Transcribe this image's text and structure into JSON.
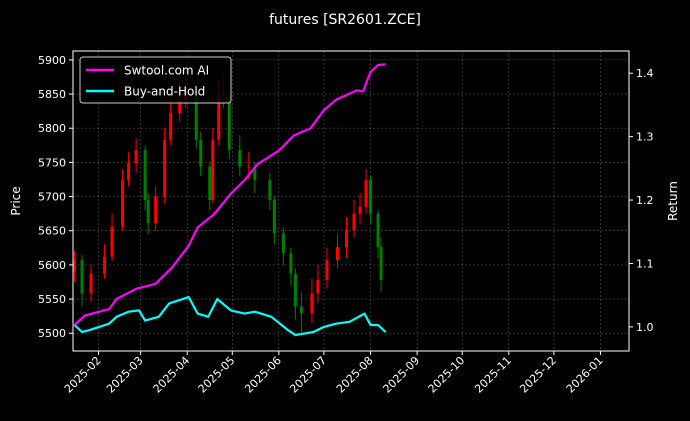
{
  "chart_data": {
    "type": "line",
    "title": "futures [SR2601.ZCE]",
    "ylabel_left": "Price",
    "ylabel_right": "Return",
    "xlim": [
      "2025-01-15",
      "2026-01-20"
    ],
    "ylim_left": [
      5474,
      5913
    ],
    "ylim_right": [
      0.962,
      1.435
    ],
    "x_ticks": [
      "2025-02",
      "2025-03",
      "2025-04",
      "2025-05",
      "2025-06",
      "2025-07",
      "2025-08",
      "2025-09",
      "2025-10",
      "2025-11",
      "2025-12",
      "2026-01"
    ],
    "y_ticks_left": [
      5500,
      5550,
      5600,
      5650,
      5700,
      5750,
      5800,
      5850,
      5900
    ],
    "y_ticks_right": [
      1.0,
      1.1,
      1.2,
      1.3,
      1.4
    ],
    "grid": true,
    "legend_placement": "top-left",
    "colors": {
      "background": "#000000",
      "up": "#ff0000",
      "down": "#008000",
      "strategy": "#ff00ff",
      "benchmark": "#00ffff",
      "grid": "#555555"
    },
    "candles": [
      [
        "2025-01-16",
        5590,
        5620,
        5575,
        5607
      ],
      [
        "2025-01-21",
        5607,
        5615,
        5540,
        5558
      ],
      [
        "2025-01-27",
        5558,
        5600,
        5545,
        5587
      ],
      [
        "2025-02-05",
        5587,
        5630,
        5580,
        5612
      ],
      [
        "2025-02-10",
        5612,
        5675,
        5605,
        5656
      ],
      [
        "2025-02-17",
        5656,
        5740,
        5650,
        5724
      ],
      [
        "2025-02-21",
        5724,
        5765,
        5715,
        5749
      ],
      [
        "2025-02-26",
        5749,
        5785,
        5735,
        5768
      ],
      [
        "2025-03-04",
        5768,
        5775,
        5680,
        5695
      ],
      [
        "2025-03-06",
        5695,
        5705,
        5645,
        5661
      ],
      [
        "2025-03-11",
        5661,
        5715,
        5650,
        5700
      ],
      [
        "2025-03-17",
        5700,
        5800,
        5690,
        5783
      ],
      [
        "2025-03-21",
        5783,
        5840,
        5775,
        5822
      ],
      [
        "2025-03-27",
        5822,
        5870,
        5810,
        5841
      ],
      [
        "2025-03-31",
        5841,
        5895,
        5830,
        5856
      ],
      [
        "2025-04-07",
        5856,
        5860,
        5770,
        5783
      ],
      [
        "2025-04-10",
        5783,
        5795,
        5730,
        5744
      ],
      [
        "2025-04-16",
        5744,
        5750,
        5680,
        5695
      ],
      [
        "2025-04-18",
        5695,
        5800,
        5690,
        5783
      ],
      [
        "2025-04-22",
        5783,
        5870,
        5775,
        5851
      ],
      [
        "2025-04-25",
        5851,
        5880,
        5830,
        5846
      ],
      [
        "2025-04-29",
        5846,
        5850,
        5755,
        5768
      ],
      [
        "2025-05-06",
        5768,
        5790,
        5730,
        5744
      ],
      [
        "2025-05-12",
        5744,
        5765,
        5725,
        5744
      ],
      [
        "2025-05-16",
        5744,
        5750,
        5705,
        5724
      ],
      [
        "2025-05-26",
        5724,
        5735,
        5680,
        5695
      ],
      [
        "2025-05-29",
        5695,
        5700,
        5630,
        5646
      ],
      [
        "2025-06-04",
        5646,
        5655,
        5600,
        5617
      ],
      [
        "2025-06-09",
        5617,
        5625,
        5570,
        5587
      ],
      [
        "2025-06-12",
        5587,
        5595,
        5520,
        5539
      ],
      [
        "2025-06-16",
        5539,
        5560,
        5500,
        5529
      ],
      [
        "2025-06-23",
        5529,
        5580,
        5515,
        5558
      ],
      [
        "2025-06-27",
        5558,
        5600,
        5545,
        5578
      ],
      [
        "2025-07-03",
        5578,
        5625,
        5565,
        5607
      ],
      [
        "2025-07-10",
        5607,
        5645,
        5595,
        5626
      ],
      [
        "2025-07-16",
        5626,
        5670,
        5610,
        5651
      ],
      [
        "2025-07-21",
        5651,
        5695,
        5640,
        5675
      ],
      [
        "2025-07-25",
        5675,
        5705,
        5660,
        5685
      ],
      [
        "2025-07-29",
        5685,
        5740,
        5675,
        5724
      ],
      [
        "2025-08-01",
        5724,
        5730,
        5660,
        5675
      ],
      [
        "2025-08-06",
        5675,
        5680,
        5610,
        5626
      ],
      [
        "2025-08-08",
        5626,
        5640,
        5560,
        5578
      ]
    ],
    "series": [
      {
        "name": "Swtool.com AI",
        "axis": "right",
        "points": [
          [
            "2025-01-16",
            1.003
          ],
          [
            "2025-01-23",
            1.018
          ],
          [
            "2025-02-08",
            1.028
          ],
          [
            "2025-02-13",
            1.044
          ],
          [
            "2025-02-26",
            1.06
          ],
          [
            "2025-03-11",
            1.068
          ],
          [
            "2025-03-22",
            1.094
          ],
          [
            "2025-04-02",
            1.128
          ],
          [
            "2025-04-08",
            1.157
          ],
          [
            "2025-04-19",
            1.178
          ],
          [
            "2025-04-30",
            1.21
          ],
          [
            "2025-05-09",
            1.231
          ],
          [
            "2025-05-18",
            1.257
          ],
          [
            "2025-06-01",
            1.278
          ],
          [
            "2025-06-11",
            1.302
          ],
          [
            "2025-06-22",
            1.313
          ],
          [
            "2025-07-01",
            1.342
          ],
          [
            "2025-07-09",
            1.358
          ],
          [
            "2025-07-23",
            1.373
          ],
          [
            "2025-07-27",
            1.371
          ],
          [
            "2025-08-01",
            1.402
          ],
          [
            "2025-08-06",
            1.413
          ],
          [
            "2025-08-11",
            1.414
          ]
        ]
      },
      {
        "name": "Buy-and-Hold",
        "axis": "right",
        "points": [
          [
            "2025-01-16",
            1.003
          ],
          [
            "2025-01-21",
            0.992
          ],
          [
            "2025-01-26",
            0.995
          ],
          [
            "2025-02-08",
            1.005
          ],
          [
            "2025-02-13",
            1.016
          ],
          [
            "2025-02-21",
            1.024
          ],
          [
            "2025-02-28",
            1.026
          ],
          [
            "2025-03-04",
            1.01
          ],
          [
            "2025-03-13",
            1.016
          ],
          [
            "2025-03-20",
            1.037
          ],
          [
            "2025-04-02",
            1.047
          ],
          [
            "2025-04-08",
            1.021
          ],
          [
            "2025-04-15",
            1.016
          ],
          [
            "2025-04-21",
            1.044
          ],
          [
            "2025-04-30",
            1.026
          ],
          [
            "2025-05-09",
            1.021
          ],
          [
            "2025-05-16",
            1.024
          ],
          [
            "2025-05-27",
            1.016
          ],
          [
            "2025-06-07",
            0.995
          ],
          [
            "2025-06-12",
            0.987
          ],
          [
            "2025-06-24",
            0.992
          ],
          [
            "2025-07-01",
            1.0
          ],
          [
            "2025-07-09",
            1.005
          ],
          [
            "2025-07-18",
            1.008
          ],
          [
            "2025-07-28",
            1.021
          ],
          [
            "2025-08-01",
            1.003
          ],
          [
            "2025-08-06",
            1.003
          ],
          [
            "2025-08-11",
            0.992
          ]
        ]
      }
    ]
  }
}
